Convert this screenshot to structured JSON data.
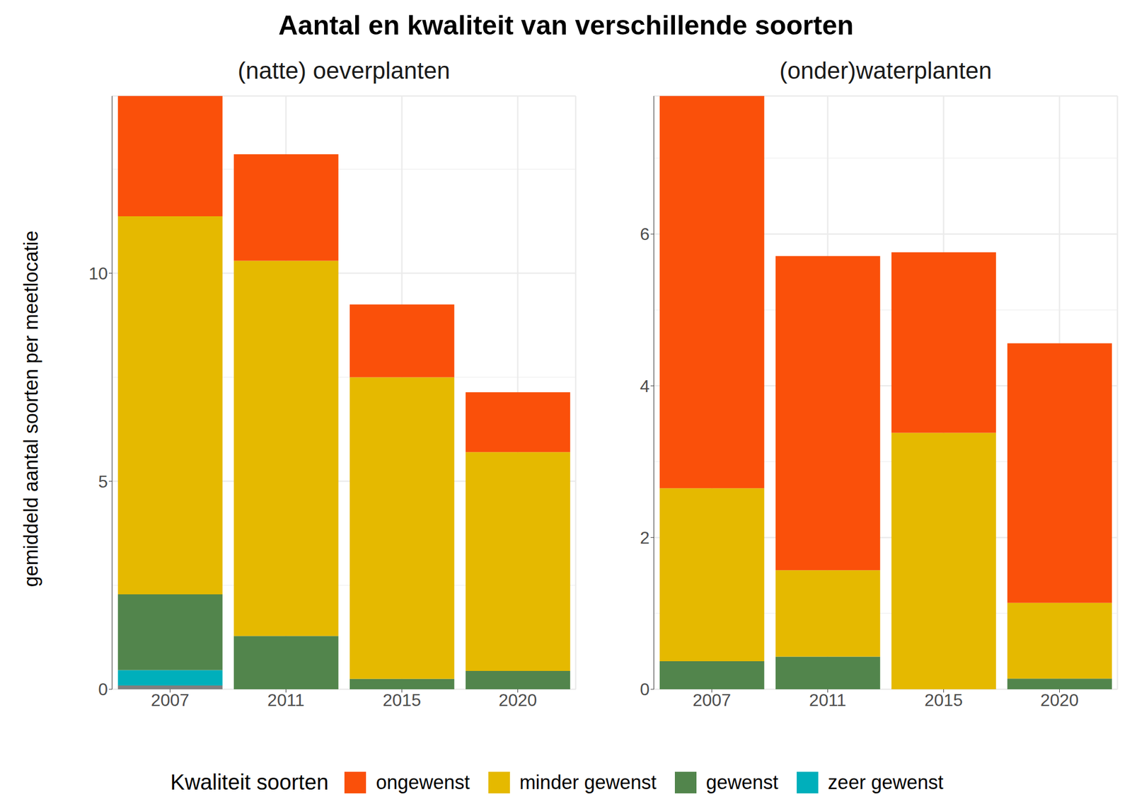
{
  "title": "Aantal en kwaliteit van verschillende soorten",
  "ylabel": "gemiddeld aantal soorten per meetlocatie",
  "legend_title": "Kwaliteit soorten",
  "chart_data": [
    {
      "type": "bar",
      "title": "(natte) oeverplanten",
      "categories": [
        "2007",
        "2011",
        "2015",
        "2020"
      ],
      "stacked": true,
      "grid": true,
      "ylim": [
        0,
        14.26
      ],
      "yticks": [
        0,
        5,
        10
      ],
      "series": [
        {
          "name": "ongewenst",
          "color": "#FA500A",
          "values": [
            2.89,
            2.56,
            1.75,
            1.44
          ]
        },
        {
          "name": "minder gewenst",
          "color": "#E5B900",
          "values": [
            9.09,
            9.02,
            7.25,
            5.26
          ]
        },
        {
          "name": "gewenst",
          "color": "#52854C",
          "values": [
            1.82,
            1.28,
            0.25,
            0.44
          ]
        },
        {
          "name": "zeer gewenst",
          "color": "#00AFBB",
          "values": [
            0.37,
            0,
            0,
            0
          ]
        },
        {
          "color": "#7F7F7F",
          "values": [
            0.09,
            0,
            0,
            0
          ]
        }
      ]
    },
    {
      "type": "bar",
      "title": "(onder)waterplanten",
      "categories": [
        "2007",
        "2011",
        "2015",
        "2020"
      ],
      "stacked": true,
      "grid": true,
      "ylim": [
        0,
        7.82
      ],
      "yticks": [
        0,
        2,
        4,
        6
      ],
      "series": [
        {
          "name": "ongewenst",
          "color": "#FA500A",
          "values": [
            5.17,
            4.14,
            2.38,
            3.42
          ]
        },
        {
          "name": "minder gewenst",
          "color": "#E5B900",
          "values": [
            2.28,
            1.14,
            3.38,
            1.0
          ]
        },
        {
          "name": "gewenst",
          "color": "#52854C",
          "values": [
            0.37,
            0.43,
            0,
            0.14
          ]
        }
      ]
    }
  ]
}
